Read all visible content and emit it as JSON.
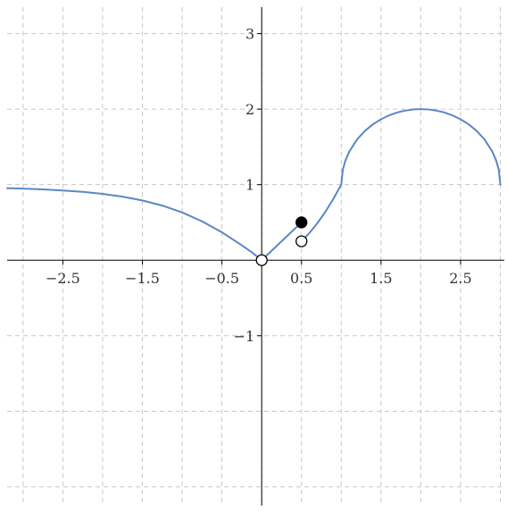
{
  "chart_data": {
    "type": "line",
    "title": "",
    "xlabel": "",
    "ylabel": "",
    "xlim": [
      -3.2,
      3.05
    ],
    "ylim": [
      -3.25,
      3.35
    ],
    "grid": true,
    "x_ticks": [
      -2.5,
      -1.5,
      -0.5,
      0.5,
      1.5,
      2.5
    ],
    "x_tick_labels": [
      "−2.5",
      "−1.5",
      "−0.5",
      "0.5",
      "1.5",
      "2.5"
    ],
    "y_ticks": [
      3,
      2,
      1,
      -1
    ],
    "y_tick_labels": [
      "3",
      "2",
      "1",
      "−1"
    ],
    "x_grid": [
      -3,
      -2.5,
      -2,
      -1.5,
      -1,
      -0.5,
      0,
      0.5,
      1,
      1.5,
      2,
      2.5,
      3
    ],
    "y_grid": [
      -3,
      -2,
      -1,
      1,
      2,
      3
    ],
    "colors": {
      "curve": "#5b87c5",
      "axis": "#000000",
      "grid": "#c8c8c8"
    },
    "series": [
      {
        "pieces": [
          {
            "points": [
              [
                -3.2,
                0.953
              ],
              [
                -3.0,
                0.947
              ],
              [
                -2.75,
                0.937
              ],
              [
                -2.5,
                0.923
              ],
              [
                -2.25,
                0.904
              ],
              [
                -2.0,
                0.878
              ],
              [
                -1.75,
                0.841
              ],
              [
                -1.5,
                0.791
              ],
              [
                -1.25,
                0.723
              ],
              [
                -1.0,
                0.632
              ],
              [
                -0.75,
                0.514
              ],
              [
                -0.5,
                0.369
              ],
              [
                -0.25,
                0.197
              ],
              [
                -0.12,
                0.101
              ],
              [
                0.0,
                0.0
              ]
            ]
          },
          {
            "points": [
              [
                0.0,
                0.0
              ],
              [
                0.5,
                0.5
              ]
            ]
          },
          {
            "points": [
              [
                0.5,
                0.25
              ],
              [
                0.6,
                0.36
              ],
              [
                0.7,
                0.49
              ],
              [
                0.8,
                0.64
              ],
              [
                0.9,
                0.81
              ],
              [
                1.0,
                1.0
              ]
            ]
          },
          {
            "points": [
              [
                1.0,
                1.0
              ],
              [
                1.02,
                1.199
              ],
              [
                1.05,
                1.312
              ],
              [
                1.1,
                1.436
              ],
              [
                1.2,
                1.6
              ],
              [
                1.3,
                1.714
              ],
              [
                1.4,
                1.8
              ],
              [
                1.5,
                1.866
              ],
              [
                1.6,
                1.917
              ],
              [
                1.7,
                1.954
              ],
              [
                1.8,
                1.98
              ],
              [
                1.9,
                1.995
              ],
              [
                2.0,
                2.0
              ],
              [
                2.1,
                1.995
              ],
              [
                2.2,
                1.98
              ],
              [
                2.3,
                1.954
              ],
              [
                2.4,
                1.917
              ],
              [
                2.5,
                1.866
              ],
              [
                2.6,
                1.8
              ],
              [
                2.7,
                1.714
              ],
              [
                2.8,
                1.6
              ],
              [
                2.9,
                1.436
              ],
              [
                2.95,
                1.312
              ],
              [
                2.98,
                1.199
              ],
              [
                3.0,
                1.0
              ]
            ]
          }
        ]
      }
    ],
    "markers": [
      {
        "x": 0.0,
        "y": 0.0,
        "filled": false
      },
      {
        "x": 0.5,
        "y": 0.5,
        "filled": true
      },
      {
        "x": 0.5,
        "y": 0.25,
        "filled": false
      }
    ]
  }
}
